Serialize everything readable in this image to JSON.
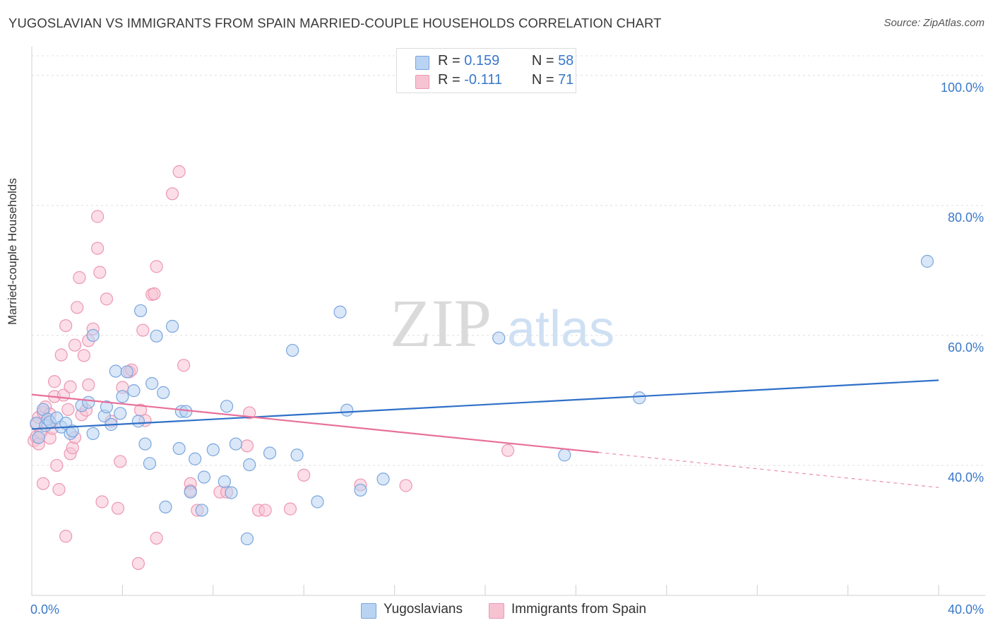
{
  "title": "YUGOSLAVIAN VS IMMIGRANTS FROM SPAIN MARRIED-COUPLE HOUSEHOLDS CORRELATION CHART",
  "source": "Source: ZipAtlas.com",
  "watermark": {
    "part1": "ZIP",
    "part2": "atlas"
  },
  "legend": {
    "r_label": "R =",
    "n_label": "N =",
    "series1": {
      "r": "0.159",
      "n": "58"
    },
    "series2": {
      "r": "-0.111",
      "n": "71"
    }
  },
  "colors": {
    "blue_fill": "#b9d3f2",
    "blue_stroke": "#7aa6dd",
    "blue_line": "#2f70c8",
    "pink_fill": "#f7c3d3",
    "pink_stroke": "#ec97b3",
    "pink_line": "#e8709a",
    "accent_text": "#3a78c9"
  },
  "chart_data": {
    "type": "scatter",
    "title": "YUGOSLAVIAN VS IMMIGRANTS FROM SPAIN MARRIED-COUPLE HOUSEHOLDS CORRELATION CHART",
    "xlabel": "",
    "ylabel": "Married-couple Households",
    "xlim": [
      0,
      40
    ],
    "ylim": [
      20,
      104
    ],
    "x_tick_labels": [
      "0.0%",
      "40.0%"
    ],
    "y_ticks": [
      40,
      60,
      80,
      100
    ],
    "y_tick_labels": [
      "40.0%",
      "60.0%",
      "80.0%",
      "100.0%"
    ],
    "grid": true,
    "legend_position": "bottom",
    "series": [
      {
        "name": "Yugoslavians",
        "color": "#7aa6dd",
        "points": [
          [
            0.2,
            46.5
          ],
          [
            0.3,
            44.3
          ],
          [
            0.5,
            48.6
          ],
          [
            0.6,
            46.1
          ],
          [
            0.7,
            47.1
          ],
          [
            0.8,
            46.7
          ],
          [
            1.1,
            47.3
          ],
          [
            1.3,
            45.9
          ],
          [
            1.5,
            46.5
          ],
          [
            1.7,
            44.9
          ],
          [
            1.8,
            45.3
          ],
          [
            2.2,
            49.2
          ],
          [
            2.5,
            49.7
          ],
          [
            2.7,
            60.0
          ],
          [
            3.2,
            47.6
          ],
          [
            3.3,
            49.0
          ],
          [
            3.5,
            46.3
          ],
          [
            2.7,
            44.9
          ],
          [
            3.7,
            54.5
          ],
          [
            3.9,
            48.0
          ],
          [
            4.0,
            50.6
          ],
          [
            4.2,
            54.4
          ],
          [
            4.5,
            51.5
          ],
          [
            4.7,
            46.8
          ],
          [
            4.8,
            63.8
          ],
          [
            5.0,
            43.3
          ],
          [
            5.2,
            40.3
          ],
          [
            5.3,
            52.6
          ],
          [
            5.5,
            59.9
          ],
          [
            5.8,
            51.2
          ],
          [
            5.9,
            33.6
          ],
          [
            6.2,
            61.4
          ],
          [
            6.5,
            42.6
          ],
          [
            6.6,
            48.3
          ],
          [
            6.8,
            48.3
          ],
          [
            7.0,
            35.9
          ],
          [
            7.2,
            41.0
          ],
          [
            7.5,
            33.1
          ],
          [
            7.6,
            38.2
          ],
          [
            8.0,
            42.4
          ],
          [
            8.5,
            37.5
          ],
          [
            8.6,
            49.1
          ],
          [
            8.8,
            35.8
          ],
          [
            9.0,
            43.3
          ],
          [
            9.5,
            28.7
          ],
          [
            9.6,
            40.1
          ],
          [
            10.5,
            41.9
          ],
          [
            11.5,
            57.7
          ],
          [
            11.7,
            41.6
          ],
          [
            12.6,
            34.4
          ],
          [
            13.6,
            63.6
          ],
          [
            13.9,
            48.5
          ],
          [
            14.5,
            36.2
          ],
          [
            15.5,
            37.9
          ],
          [
            20.6,
            59.6
          ],
          [
            23.5,
            41.6
          ],
          [
            26.8,
            50.4
          ],
          [
            39.5,
            71.4
          ]
        ]
      },
      {
        "name": "Immigrants from Spain",
        "color": "#ec97b3",
        "points": [
          [
            0.1,
            43.8
          ],
          [
            0.2,
            44.4
          ],
          [
            0.2,
            46.3
          ],
          [
            0.3,
            47.4
          ],
          [
            0.3,
            43.3
          ],
          [
            0.4,
            45.0
          ],
          [
            0.5,
            48.2
          ],
          [
            0.5,
            37.2
          ],
          [
            0.6,
            49.0
          ],
          [
            0.7,
            46.5
          ],
          [
            0.8,
            47.9
          ],
          [
            0.8,
            44.2
          ],
          [
            0.9,
            45.7
          ],
          [
            1.0,
            52.9
          ],
          [
            1.0,
            50.6
          ],
          [
            1.1,
            40.0
          ],
          [
            1.2,
            36.3
          ],
          [
            1.3,
            57.0
          ],
          [
            1.4,
            50.8
          ],
          [
            1.5,
            61.5
          ],
          [
            1.5,
            29.1
          ],
          [
            1.6,
            48.6
          ],
          [
            1.7,
            52.1
          ],
          [
            1.7,
            41.8
          ],
          [
            1.8,
            42.7
          ],
          [
            1.9,
            44.3
          ],
          [
            1.9,
            58.5
          ],
          [
            2.0,
            64.3
          ],
          [
            2.1,
            68.9
          ],
          [
            2.2,
            47.8
          ],
          [
            2.3,
            56.9
          ],
          [
            2.4,
            48.5
          ],
          [
            2.5,
            52.4
          ],
          [
            2.5,
            59.2
          ],
          [
            2.7,
            61.0
          ],
          [
            2.9,
            73.4
          ],
          [
            2.9,
            78.3
          ],
          [
            3.0,
            69.7
          ],
          [
            3.1,
            34.4
          ],
          [
            3.3,
            65.6
          ],
          [
            3.5,
            46.8
          ],
          [
            3.8,
            33.4
          ],
          [
            3.9,
            40.6
          ],
          [
            4.0,
            52.0
          ],
          [
            4.3,
            54.4
          ],
          [
            4.4,
            54.7
          ],
          [
            4.7,
            24.9
          ],
          [
            4.8,
            48.5
          ],
          [
            4.9,
            60.8
          ],
          [
            5.0,
            46.9
          ],
          [
            5.3,
            66.3
          ],
          [
            5.4,
            66.4
          ],
          [
            5.5,
            70.6
          ],
          [
            5.5,
            28.8
          ],
          [
            6.2,
            81.8
          ],
          [
            6.5,
            85.2
          ],
          [
            6.7,
            55.4
          ],
          [
            7.0,
            37.2
          ],
          [
            7.0,
            36.1
          ],
          [
            7.3,
            33.1
          ],
          [
            8.3,
            35.9
          ],
          [
            8.6,
            35.9
          ],
          [
            9.5,
            43.0
          ],
          [
            9.6,
            48.1
          ],
          [
            10.0,
            33.1
          ],
          [
            10.3,
            33.1
          ],
          [
            11.4,
            33.3
          ],
          [
            12.0,
            38.5
          ],
          [
            14.5,
            37.0
          ],
          [
            16.5,
            36.9
          ],
          [
            21.0,
            42.3
          ]
        ]
      }
    ],
    "trend_lines": [
      {
        "series": "Yugoslavians",
        "x": [
          0,
          40
        ],
        "y": [
          45.6,
          53.1
        ]
      },
      {
        "series": "Immigrants from Spain",
        "x": [
          0,
          25
        ],
        "y": [
          50.9,
          42.0
        ],
        "dashed_extension_to": [
          40,
          36.6
        ]
      }
    ]
  }
}
